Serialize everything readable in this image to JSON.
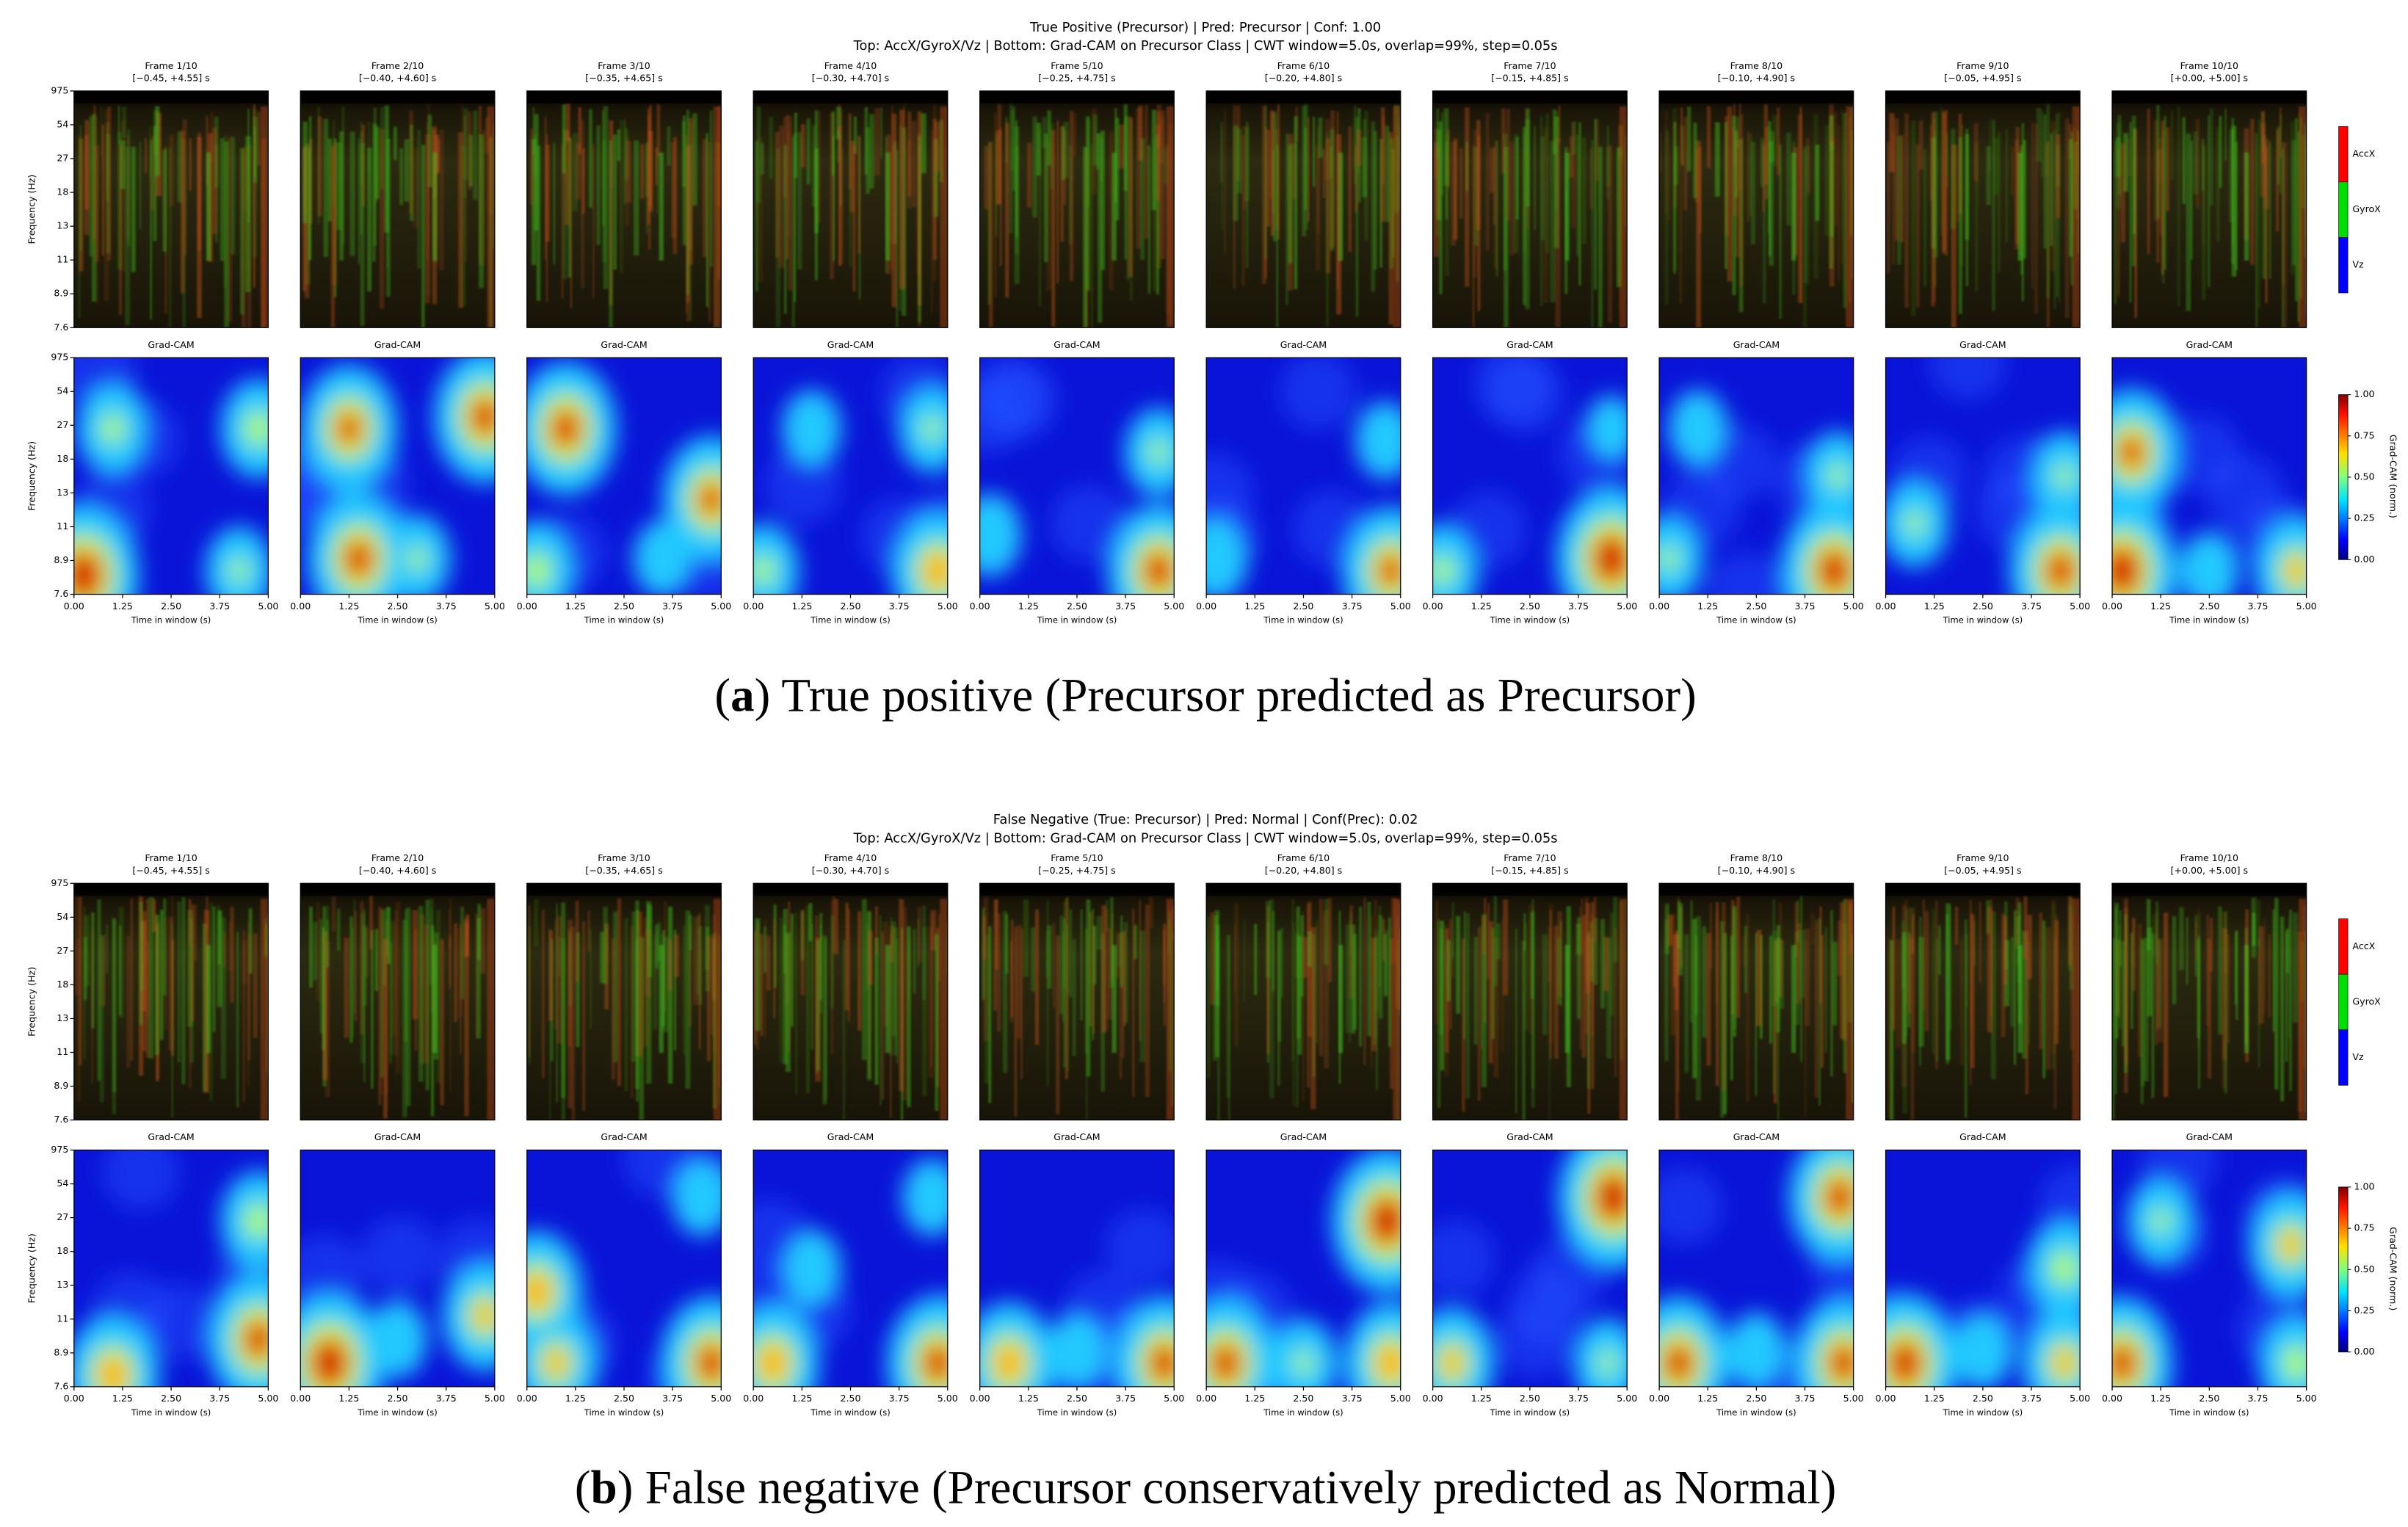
{
  "panels": [
    {
      "title": "True Positive (Precursor) | Pred: Precursor | Conf: 1.00",
      "subtitle": "Top: AccX/GyroX/Vz | Bottom: Grad-CAM on Precursor Class | CWT window=5.0s, overlap=99%, step=0.05s",
      "caption": [
        "(",
        "a",
        ") True positive (Precursor predicted as Precursor)"
      ]
    },
    {
      "title": "False Negative (True: Precursor) | Pred: Normal | Conf(Prec): 0.02",
      "subtitle": "Top: AccX/GyroX/Vz | Bottom: Grad-CAM on Precursor Class | CWT window=5.0s, overlap=99%, step=0.05s",
      "caption": [
        "(",
        "b",
        ") False negative (Precursor conservatively predicted as Normal)"
      ]
    }
  ],
  "frames": [
    {
      "title": "Frame 1/10",
      "range": "[−0.45, +4.55] s"
    },
    {
      "title": "Frame 2/10",
      "range": "[−0.40, +4.60] s"
    },
    {
      "title": "Frame 3/10",
      "range": "[−0.35, +4.65] s"
    },
    {
      "title": "Frame 4/10",
      "range": "[−0.30, +4.70] s"
    },
    {
      "title": "Frame 5/10",
      "range": "[−0.25, +4.75] s"
    },
    {
      "title": "Frame 6/10",
      "range": "[−0.20, +4.80] s"
    },
    {
      "title": "Frame 7/10",
      "range": "[−0.15, +4.85] s"
    },
    {
      "title": "Frame 8/10",
      "range": "[−0.10, +4.90] s"
    },
    {
      "title": "Frame 9/10",
      "range": "[−0.05, +4.95] s"
    },
    {
      "title": "Frame 10/10",
      "range": "[+0.00, +5.00] s"
    }
  ],
  "axes": {
    "ylabel": "Frequency (Hz)",
    "yticks": [
      "975",
      "54",
      "27",
      "18",
      "13",
      "11",
      "8.9",
      "7.6"
    ],
    "xlabel": "Time in window (s)",
    "xticks": [
      "0.00",
      "1.25",
      "2.50",
      "3.75",
      "5.00"
    ]
  },
  "cam_title": "Grad-CAM",
  "rgb_legend": [
    "AccX",
    "GyroX",
    "Vz"
  ],
  "colorbar": {
    "label": "Grad-CAM (norm.)",
    "ticks": [
      "1.00",
      "0.75",
      "0.50",
      "0.25",
      "0.00"
    ]
  }
}
